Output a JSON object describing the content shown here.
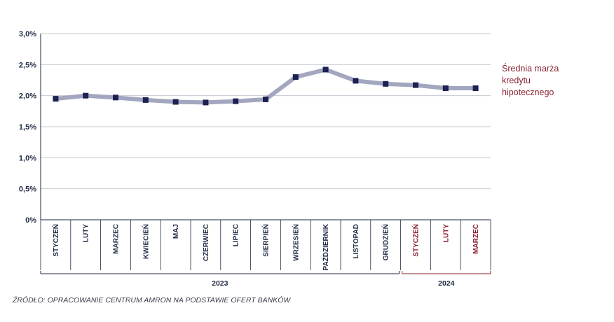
{
  "chart_data": {
    "type": "line",
    "title": "",
    "xlabel": "",
    "ylabel": "",
    "ylim": [
      0,
      3.0
    ],
    "yticks": [
      "0%",
      "0,5%",
      "1,0%",
      "1,5%",
      "2,0%",
      "2,5%",
      "3,0%"
    ],
    "ytick_values": [
      0,
      0.5,
      1.0,
      1.5,
      2.0,
      2.5,
      3.0
    ],
    "grid": true,
    "categories": [
      "STYCZEŃ",
      "LUTY",
      "MARZEC",
      "KWIECIEŃ",
      "MAJ",
      "CZERWIEC",
      "LIPIEC",
      "SIERPIEŃ",
      "WRZESIEŃ",
      "PAŹDZIERNIK",
      "LISTOPAD",
      "GRUDZIEŃ",
      "STYCZEŃ",
      "LUTY",
      "MARZEC"
    ],
    "series": [
      {
        "name": "Średnia marża kredytu hipotecznego",
        "values": [
          1.95,
          2.0,
          1.97,
          1.93,
          1.9,
          1.89,
          1.91,
          1.94,
          2.3,
          2.42,
          2.24,
          2.19,
          2.17,
          2.12,
          2.12
        ]
      }
    ],
    "year_groups": [
      {
        "label": "2023",
        "count": 12
      },
      {
        "label": "2024",
        "count": 3
      }
    ],
    "legend_lines": [
      "Średnia marża",
      "kredytu",
      "hipotecznego"
    ],
    "legend_position": "right",
    "colors": {
      "line": "#a3a6bf",
      "marker": "#1c2152",
      "axis": "#1f2a44",
      "grid": "#c6c8d2",
      "highlight": "#8b1f2f"
    }
  },
  "source": "ŹRÓDŁO: OPRACOWANIE CENTRUM AMRON NA PODSTAWIE OFERT BANKÓW"
}
